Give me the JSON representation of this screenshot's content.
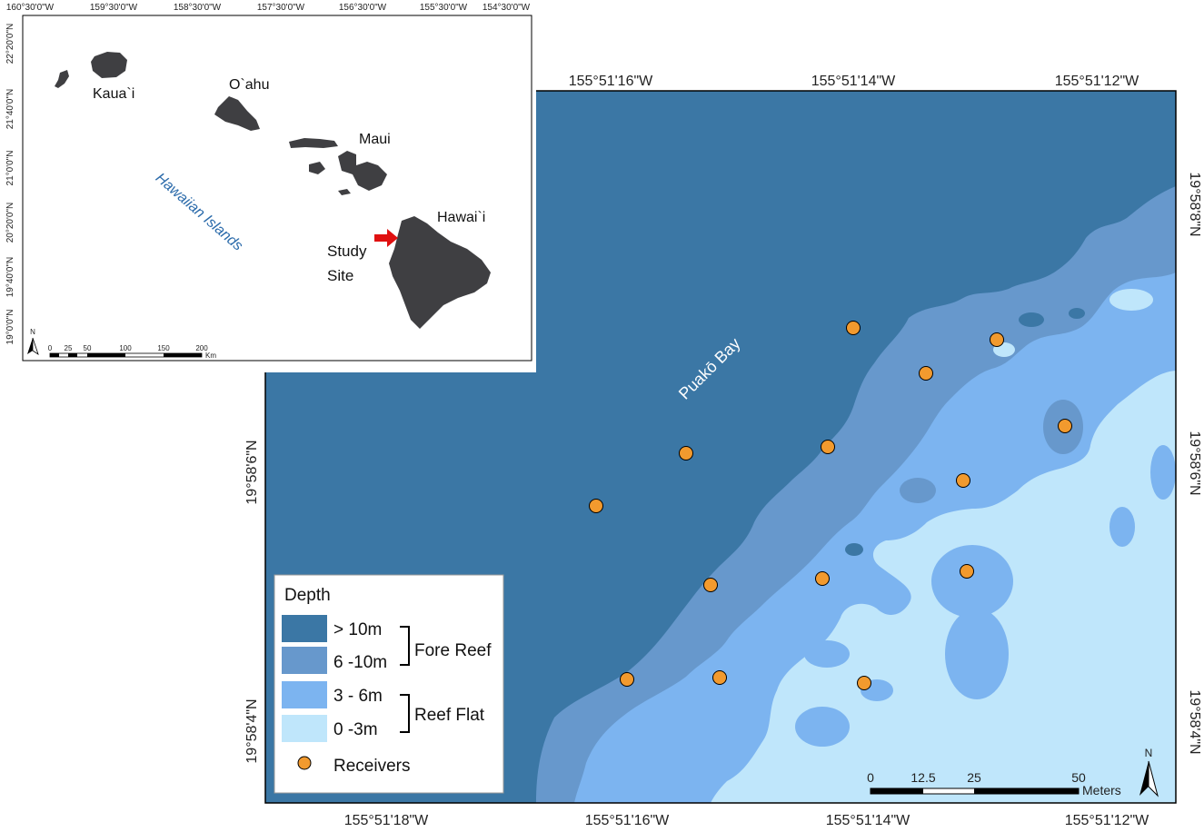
{
  "main_map": {
    "title_label": "Puakō Bay",
    "top_lon_labels": [
      "155°51'16\"W",
      "155°51'14\"W",
      "155°51'12\"W"
    ],
    "bottom_lon_labels": [
      "155°51'18\"W",
      "155°51'16\"W",
      "155°51'14\"W",
      "155°51'12\"W"
    ],
    "left_lat_labels": [
      "19°58'6\"N",
      "19°58'4\"N"
    ],
    "right_lat_labels": [
      "19°58'8\"N",
      "19°58'6\"N",
      "19°58'4\"N"
    ],
    "receiver_count": 15,
    "colors": {
      "deep": "#3b77a5",
      "fore": "#6798cc",
      "flat": "#7cb4f0",
      "shallow": "#bfe6fb",
      "receiver": "#f29a2e"
    }
  },
  "legend": {
    "title": "Depth",
    "items": [
      {
        "label": "> 10m",
        "color": "#3b77a5"
      },
      {
        "label": "6 -10m",
        "color": "#6798cc"
      },
      {
        "label": "3 - 6m",
        "color": "#7cb4f0"
      },
      {
        "label": "0 -3m",
        "color": "#bfe6fb"
      }
    ],
    "group_fore": "Fore Reef",
    "group_flat": "Reef Flat",
    "receivers_label": "Receivers"
  },
  "scalebar": {
    "ticks": [
      "0",
      "12.5",
      "25",
      "50"
    ],
    "unit": "Meters",
    "north": "N"
  },
  "inset": {
    "top_lon_labels": [
      "160°30'0\"W",
      "159°30'0\"W",
      "158°30'0\"W",
      "157°30'0\"W",
      "156°30'0\"W",
      "155°30'0\"W",
      "154°30'0\"W"
    ],
    "left_lat_labels": [
      "22°20'0\"N",
      "21°40'0\"N",
      "21°0'0\"N",
      "20°20'0\"N",
      "19°40'0\"N",
      "19°0'0\"N"
    ],
    "island_labels": {
      "kauai": "Kaua`i",
      "oahu": "O`ahu",
      "maui": "Maui",
      "hawaii": "Hawai`i"
    },
    "region_label": "Hawaiian Islands",
    "study_line1": "Study",
    "study_line2": "Site",
    "scale_ticks": [
      "0",
      "25",
      "50",
      "100",
      "150",
      "200"
    ],
    "scale_unit": "Km",
    "north": "N",
    "arrow_color": "#e01010",
    "island_color": "#3f3f42"
  }
}
